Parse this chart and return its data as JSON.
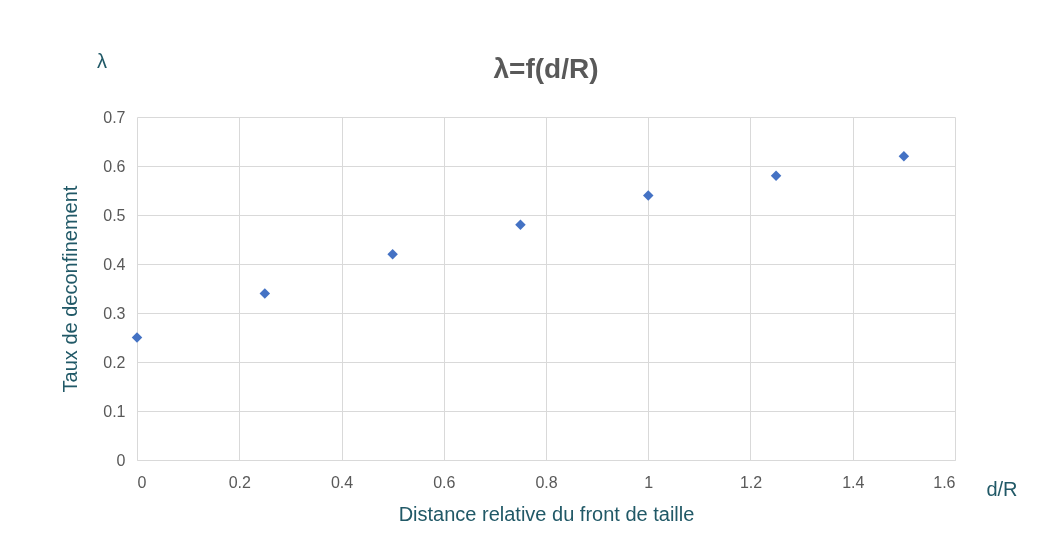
{
  "chart_data": {
    "type": "scatter",
    "title": "λ=f(d/R)",
    "xlabel": "Distance relative du front de taille",
    "ylabel": "Taux de deconfinement",
    "annotations": [
      "λ",
      "d/R"
    ],
    "x": [
      0,
      0.25,
      0.5,
      0.75,
      1,
      1.25,
      1.5
    ],
    "series": [
      {
        "color": "#4472c4",
        "values": [
          0.25,
          0.34,
          0.42,
          0.48,
          0.54,
          0.58,
          0.62
        ]
      }
    ],
    "xlim": [
      0,
      1.6
    ],
    "xticks": [
      0,
      0.2,
      0.4,
      0.6,
      0.8,
      1,
      1.2,
      1.4,
      1.6
    ],
    "ylim": [
      0,
      0.7
    ],
    "yticks": [
      0,
      0.1,
      0.2,
      0.3,
      0.4,
      0.5,
      0.6,
      0.7
    ],
    "grid": true,
    "marker": "diamond"
  }
}
